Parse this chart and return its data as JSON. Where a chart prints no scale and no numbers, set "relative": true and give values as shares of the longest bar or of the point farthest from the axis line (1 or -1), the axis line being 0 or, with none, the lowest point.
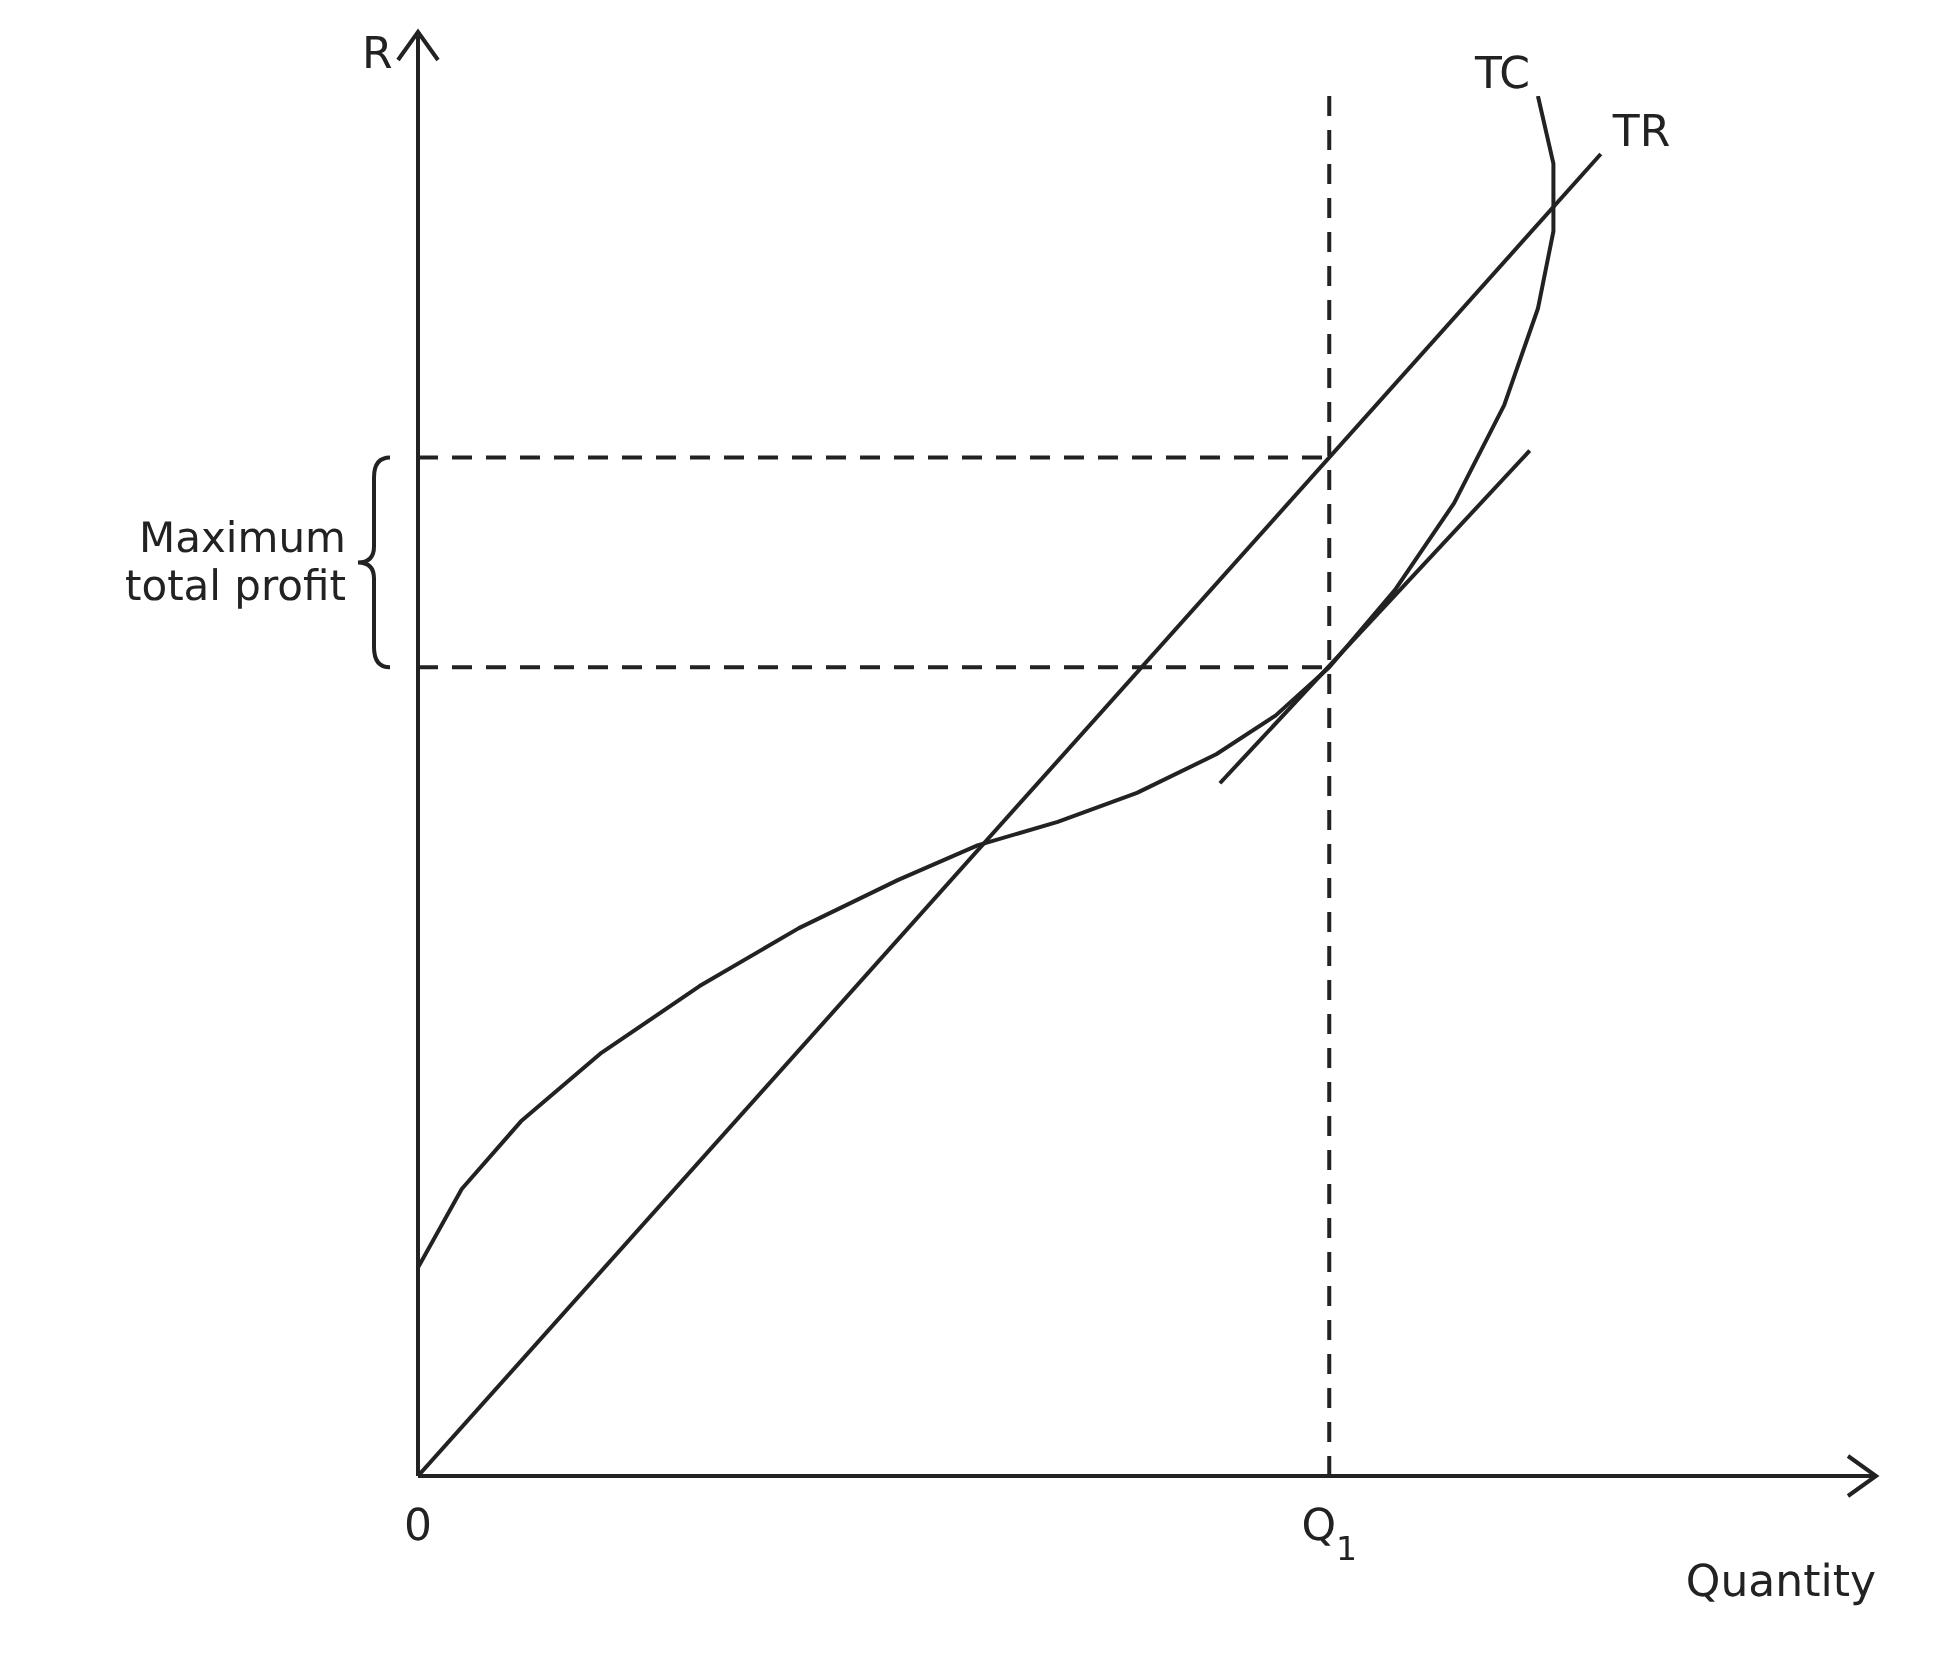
{
  "chart_data": {
    "type": "line",
    "relative": true,
    "xlabel": "Quantity",
    "ylabel": "R",
    "xlim": [
      0,
      1.6
    ],
    "xticks": [
      {
        "value": 0,
        "label": "0"
      },
      {
        "value": 1,
        "label": "Q$_{1}$"
      }
    ],
    "marker": "none",
    "line_style": "solid",
    "series": [
      {
        "name": "TC",
        "color": "#222222",
        "x": [
          0,
          0.048,
          0.113,
          0.2,
          0.309,
          0.418,
          0.527,
          0.614,
          0.702,
          0.789,
          0.876,
          0.941,
          1,
          1.072,
          1.137,
          1.192,
          1.229,
          1.246,
          1.246,
          1.229
        ],
        "values": [
          0.151,
          0.208,
          0.257,
          0.306,
          0.355,
          0.397,
          0.432,
          0.457,
          0.474,
          0.495,
          0.523,
          0.551,
          0.586,
          0.642,
          0.705,
          0.776,
          0.846,
          0.902,
          0.951,
          1
        ]
      },
      {
        "name": "TR",
        "color": "#222222",
        "x": [
          0,
          1.298
        ],
        "values": [
          0,
          0.958
        ]
      },
      {
        "color": "#222222",
        "x": [
          0.88,
          1.22
        ],
        "values": [
          0.502,
          0.743
        ]
      }
    ],
    "ref_lines": [
      {
        "axis": "x",
        "value": 1,
        "line_style": "dashed",
        "color": "#222222"
      },
      {
        "axis": "y",
        "value": 0.738,
        "line_style": "dashed",
        "color": "#222222"
      },
      {
        "axis": "y",
        "value": 0.586,
        "line_style": "dashed",
        "color": "#222222"
      }
    ],
    "annotations": [
      "Maximum\ntotal profit"
    ]
  }
}
